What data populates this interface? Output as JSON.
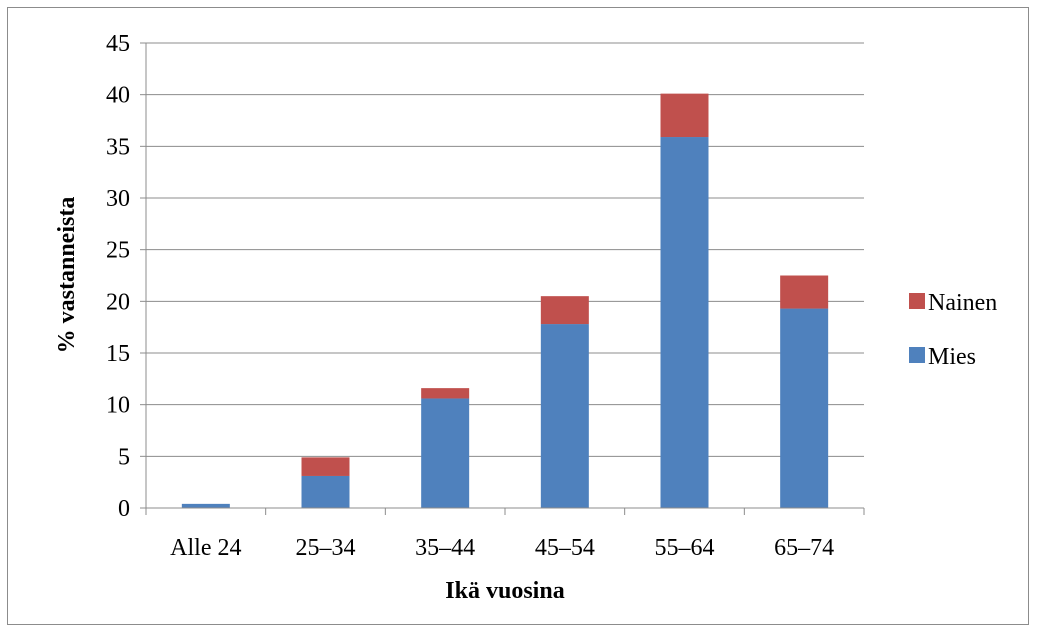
{
  "chart_data": {
    "type": "bar",
    "stacked": true,
    "categories": [
      "Alle 24",
      "25–34",
      "35–44",
      "45–54",
      "55–64",
      "65–74"
    ],
    "series": [
      {
        "name": "Mies",
        "color": "#4f81bd",
        "values": [
          0.4,
          3.1,
          10.6,
          17.8,
          35.9,
          19.3
        ]
      },
      {
        "name": "Nainen",
        "color": "#c0504d",
        "values": [
          0.0,
          1.8,
          1.0,
          2.7,
          4.2,
          3.2
        ]
      }
    ],
    "xlabel": "Ikä vuosina",
    "ylabel": "% vastanneista",
    "ylim": [
      0,
      45
    ],
    "yticks": [
      0,
      5,
      10,
      15,
      20,
      25,
      30,
      35,
      40,
      45
    ],
    "grid": true,
    "legend": {
      "position": "right",
      "order": [
        "Nainen",
        "Mies"
      ]
    }
  }
}
